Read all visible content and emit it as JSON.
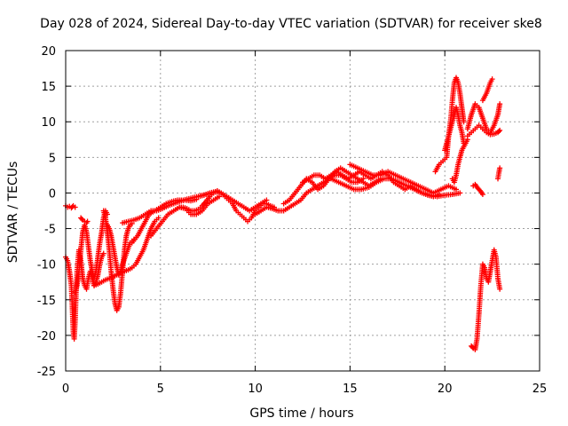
{
  "chart_data": {
    "type": "scatter",
    "title": "Day 028 of 2024, Sidereal Day-to-day VTEC variation (SDTVAR) for receiver ske8",
    "xlabel": "GPS time / hours",
    "ylabel": "SDTVAR / TECUs",
    "xlim": [
      0,
      25
    ],
    "ylim": [
      -25,
      20
    ],
    "xticks": [
      0,
      5,
      10,
      15,
      20,
      25
    ],
    "yticks": [
      -25,
      -20,
      -15,
      -10,
      -5,
      0,
      5,
      10,
      15,
      20
    ],
    "grid": true,
    "marker": "+",
    "series": [
      {
        "name": "SDTVAR",
        "color": "#ff0000",
        "segments": [
          {
            "x": [
              0.0,
              0.1,
              0.2,
              0.3,
              0.4,
              0.5
            ],
            "y": [
              -1.8,
              -2.0,
              -1.9,
              -2.1,
              -1.8,
              -2.0
            ]
          },
          {
            "x": [
              0.0,
              0.1,
              0.2,
              0.3,
              0.35,
              0.4,
              0.45,
              0.5,
              0.55,
              0.6,
              0.7,
              0.8,
              0.9,
              1.0,
              1.1,
              1.2,
              1.3,
              1.4,
              1.5,
              1.6,
              1.7,
              1.8,
              1.9,
              2.0
            ],
            "y": [
              -9.0,
              -9.5,
              -11.0,
              -13.0,
              -16.0,
              -19.5,
              -20.5,
              -18.0,
              -14.0,
              -11.0,
              -8.0,
              -9.5,
              -12.0,
              -13.0,
              -13.5,
              -12.0,
              -11.0,
              -12.0,
              -13.0,
              -12.5,
              -11.5,
              -10.0,
              -9.0,
              -8.5
            ]
          },
          {
            "x": [
              0.5,
              0.6,
              0.7,
              0.8,
              0.9,
              1.0,
              1.1,
              1.2,
              1.3,
              1.4,
              1.5,
              1.6,
              1.7,
              1.8,
              1.9,
              2.0,
              2.1,
              2.2
            ],
            "y": [
              -14.0,
              -13.0,
              -11.0,
              -8.0,
              -5.5,
              -4.5,
              -5.5,
              -7.5,
              -9.5,
              -11.0,
              -12.0,
              -11.0,
              -9.0,
              -7.0,
              -5.5,
              -3.5,
              -2.5,
              -3.0
            ]
          },
          {
            "x": [
              0.8,
              0.9,
              1.0,
              1.1,
              1.15
            ],
            "y": [
              -3.5,
              -3.8,
              -4.0,
              -4.2,
              -4.0
            ]
          },
          {
            "x": [
              2.0,
              2.1,
              2.2,
              2.3,
              2.4,
              2.5,
              2.6,
              2.7,
              2.8,
              2.9,
              3.0,
              3.1,
              3.2,
              3.3,
              3.4,
              3.5
            ],
            "y": [
              -2.5,
              -3.5,
              -5.5,
              -8.0,
              -11.0,
              -13.5,
              -15.5,
              -16.5,
              -16.0,
              -14.0,
              -11.0,
              -8.0,
              -6.0,
              -5.0,
              -4.5,
              -4.3
            ]
          },
          {
            "x": [
              2.2,
              2.3,
              2.4,
              2.5,
              2.6,
              2.7,
              2.8,
              2.9,
              3.0,
              3.2,
              3.4,
              3.6
            ],
            "y": [
              -4.5,
              -5.0,
              -6.0,
              -7.5,
              -9.0,
              -10.5,
              -11.5,
              -11.0,
              -10.0,
              -8.5,
              -7.0,
              -6.5
            ]
          },
          {
            "x": [
              1.5,
              1.7,
              1.9,
              2.1,
              2.3,
              2.5,
              2.7,
              2.9,
              3.1,
              3.3,
              3.5,
              3.7,
              3.9,
              4.1,
              4.3,
              4.5,
              4.7,
              4.9
            ],
            "y": [
              -13.0,
              -12.8,
              -12.5,
              -12.2,
              -12.0,
              -11.8,
              -11.5,
              -11.2,
              -11.0,
              -10.8,
              -10.5,
              -10.0,
              -9.0,
              -8.0,
              -6.5,
              -5.0,
              -4.0,
              -3.5
            ]
          },
          {
            "x": [
              3.0,
              3.3,
              3.6,
              3.9,
              4.2,
              4.5,
              4.8,
              5.1,
              5.4,
              5.7,
              6.0,
              6.3,
              6.6,
              6.9
            ],
            "y": [
              -4.2,
              -4.0,
              -3.8,
              -3.5,
              -3.0,
              -2.5,
              -2.5,
              -2.2,
              -1.8,
              -1.5,
              -1.2,
              -1.0,
              -1.1,
              -0.9
            ]
          },
          {
            "x": [
              3.5,
              3.8,
              4.1,
              4.4,
              4.7,
              5.0,
              5.3,
              5.6,
              5.9,
              6.2,
              6.5,
              6.8,
              7.1,
              7.4,
              7.7,
              8.0
            ],
            "y": [
              -7.0,
              -6.0,
              -4.5,
              -3.0,
              -2.5,
              -2.0,
              -1.5,
              -1.2,
              -1.0,
              -1.0,
              -0.8,
              -0.6,
              -0.4,
              -0.2,
              0.0,
              0.2
            ]
          },
          {
            "x": [
              4.5,
              4.8,
              5.1,
              5.4,
              5.7,
              6.0,
              6.3,
              6.6,
              6.9,
              7.2,
              7.5,
              7.8,
              8.1
            ],
            "y": [
              -6.0,
              -5.0,
              -4.0,
              -3.0,
              -2.5,
              -2.0,
              -2.2,
              -3.0,
              -3.0,
              -2.5,
              -1.5,
              -1.0,
              -0.5
            ]
          },
          {
            "x": [
              6.0,
              6.2,
              6.4,
              6.6,
              6.8,
              7.0,
              7.2,
              7.4,
              7.6,
              7.8,
              8.0,
              8.2,
              8.4,
              8.6,
              8.8,
              9.0,
              9.2,
              9.4,
              9.6,
              9.8,
              10.0,
              10.2,
              10.4,
              10.6,
              10.8,
              11.0
            ],
            "y": [
              -2.0,
              -2.0,
              -2.2,
              -2.5,
              -2.5,
              -2.3,
              -1.8,
              -1.2,
              -0.5,
              0.0,
              0.3,
              0.0,
              -0.5,
              -1.0,
              -1.5,
              -2.5,
              -3.0,
              -3.5,
              -4.0,
              -3.5,
              -2.5,
              -2.0,
              -1.5,
              -1.5,
              -1.8,
              -2.0
            ]
          },
          {
            "x": [
              7.0,
              7.3,
              7.6,
              7.9,
              8.2,
              8.5,
              8.8,
              9.1,
              9.4,
              9.7,
              10.0,
              10.3,
              10.6
            ],
            "y": [
              -0.5,
              -0.3,
              0.0,
              0.2,
              0.0,
              -0.5,
              -1.0,
              -1.5,
              -2.0,
              -2.5,
              -2.0,
              -1.5,
              -1.0
            ]
          },
          {
            "x": [
              10.0,
              10.3,
              10.6,
              10.9,
              11.2,
              11.5,
              11.8,
              12.1,
              12.4,
              12.7,
              13.0,
              13.3,
              13.6,
              13.9,
              14.2,
              14.5,
              14.8,
              15.1,
              15.4,
              15.7
            ],
            "y": [
              -3.0,
              -2.5,
              -2.0,
              -2.2,
              -2.5,
              -2.5,
              -2.0,
              -1.5,
              -1.0,
              0.0,
              0.5,
              1.0,
              1.5,
              2.0,
              2.5,
              2.5,
              2.0,
              1.5,
              1.5,
              2.0
            ]
          },
          {
            "x": [
              11.5,
              11.8,
              12.1,
              12.4,
              12.7,
              13.0,
              13.3,
              13.6,
              13.9,
              14.2,
              14.5,
              14.8,
              15.1,
              15.4,
              15.7,
              16.0,
              16.3,
              16.6
            ],
            "y": [
              -1.5,
              -1.0,
              0.0,
              1.0,
              2.0,
              1.5,
              0.5,
              1.0,
              2.0,
              3.0,
              3.5,
              3.0,
              2.5,
              2.0,
              1.5,
              1.0,
              1.5,
              2.0
            ]
          },
          {
            "x": [
              12.5,
              12.8,
              13.1,
              13.4,
              13.7,
              14.0,
              14.3,
              14.6,
              14.9,
              15.2,
              15.5,
              15.8,
              16.1,
              16.4,
              16.7,
              17.0,
              17.3,
              17.6,
              17.9,
              18.2,
              18.5,
              18.8,
              19.1,
              19.4,
              19.7
            ],
            "y": [
              1.5,
              2.0,
              2.5,
              2.5,
              2.0,
              2.5,
              3.0,
              2.5,
              2.0,
              2.5,
              3.0,
              2.5,
              2.0,
              2.5,
              3.0,
              2.5,
              1.5,
              1.0,
              0.5,
              1.0,
              0.5,
              0.0,
              -0.3,
              -0.5,
              -0.2
            ]
          },
          {
            "x": [
              14.0,
              14.4,
              14.8,
              15.2,
              15.6,
              16.0,
              16.4,
              16.8,
              17.2,
              17.6,
              18.0,
              18.4,
              18.8,
              19.2,
              19.6,
              20.0,
              20.4,
              20.8
            ],
            "y": [
              2.0,
              1.5,
              1.0,
              0.5,
              0.5,
              0.8,
              1.5,
              2.0,
              2.0,
              1.5,
              1.0,
              0.5,
              0.0,
              -0.3,
              -0.5,
              -0.3,
              -0.2,
              0.0
            ]
          },
          {
            "x": [
              15.0,
              15.4,
              15.8,
              16.2,
              16.6,
              17.0,
              17.4,
              17.8,
              18.2,
              18.6,
              19.0,
              19.4,
              19.8,
              20.2,
              20.6
            ],
            "y": [
              4.0,
              3.5,
              3.0,
              2.5,
              2.5,
              3.0,
              2.5,
              2.0,
              1.5,
              1.0,
              0.5,
              0.0,
              0.5,
              1.0,
              0.5
            ]
          },
          {
            "x": [
              19.5,
              19.7,
              19.9,
              20.1,
              20.2,
              20.3,
              20.4,
              20.5,
              20.6,
              20.7,
              20.8,
              20.9,
              21.0
            ],
            "y": [
              3.0,
              4.0,
              4.5,
              5.0,
              8.0,
              10.0,
              13.0,
              15.5,
              16.2,
              15.5,
              14.0,
              12.0,
              10.0
            ]
          },
          {
            "x": [
              20.0,
              20.1,
              20.2,
              20.3,
              20.4,
              20.5,
              20.6,
              20.7,
              20.8,
              20.9,
              21.0
            ],
            "y": [
              6.0,
              7.0,
              8.0,
              9.0,
              10.0,
              11.0,
              12.0,
              11.0,
              9.5,
              8.5,
              7.0
            ]
          },
          {
            "x": [
              20.4,
              20.5,
              20.6,
              20.7,
              20.8,
              20.9,
              21.0,
              21.1,
              21.2
            ],
            "y": [
              2.0,
              1.5,
              2.5,
              4.0,
              5.0,
              6.0,
              6.5,
              7.0,
              7.5
            ]
          },
          {
            "x": [
              21.2,
              21.4,
              21.6,
              21.8,
              22.0,
              22.2,
              22.4,
              22.6,
              22.8,
              22.9
            ],
            "y": [
              9.0,
              11.0,
              12.5,
              12.0,
              10.5,
              9.0,
              8.5,
              9.5,
              11.0,
              12.5
            ]
          },
          {
            "x": [
              21.2,
              21.4,
              21.6,
              21.8,
              22.0,
              22.2,
              22.4,
              22.6,
              22.8,
              22.9
            ],
            "y": [
              8.0,
              8.5,
              9.0,
              9.5,
              9.0,
              8.5,
              8.2,
              8.3,
              8.5,
              8.8
            ]
          },
          {
            "x": [
              22.0,
              22.2,
              22.4,
              22.5
            ],
            "y": [
              13.0,
              14.0,
              15.5,
              16.0
            ]
          },
          {
            "x": [
              21.5,
              21.6,
              21.7,
              21.8,
              21.9,
              22.0
            ],
            "y": [
              1.0,
              1.2,
              0.8,
              0.5,
              0.2,
              -0.2
            ]
          },
          {
            "x": [
              22.8,
              22.85,
              22.9
            ],
            "y": [
              2.0,
              2.8,
              3.5
            ]
          },
          {
            "x": [
              21.4,
              21.5,
              21.6,
              21.7,
              21.8,
              21.9,
              22.0,
              22.1,
              22.2,
              22.3,
              22.4,
              22.5,
              22.6,
              22.7,
              22.8,
              22.9
            ],
            "y": [
              -21.5,
              -21.8,
              -22.0,
              -20.5,
              -17.0,
              -13.0,
              -10.0,
              -10.5,
              -12.0,
              -12.5,
              -11.0,
              -9.5,
              -8.0,
              -9.0,
              -12.0,
              -13.5
            ]
          }
        ]
      }
    ]
  }
}
